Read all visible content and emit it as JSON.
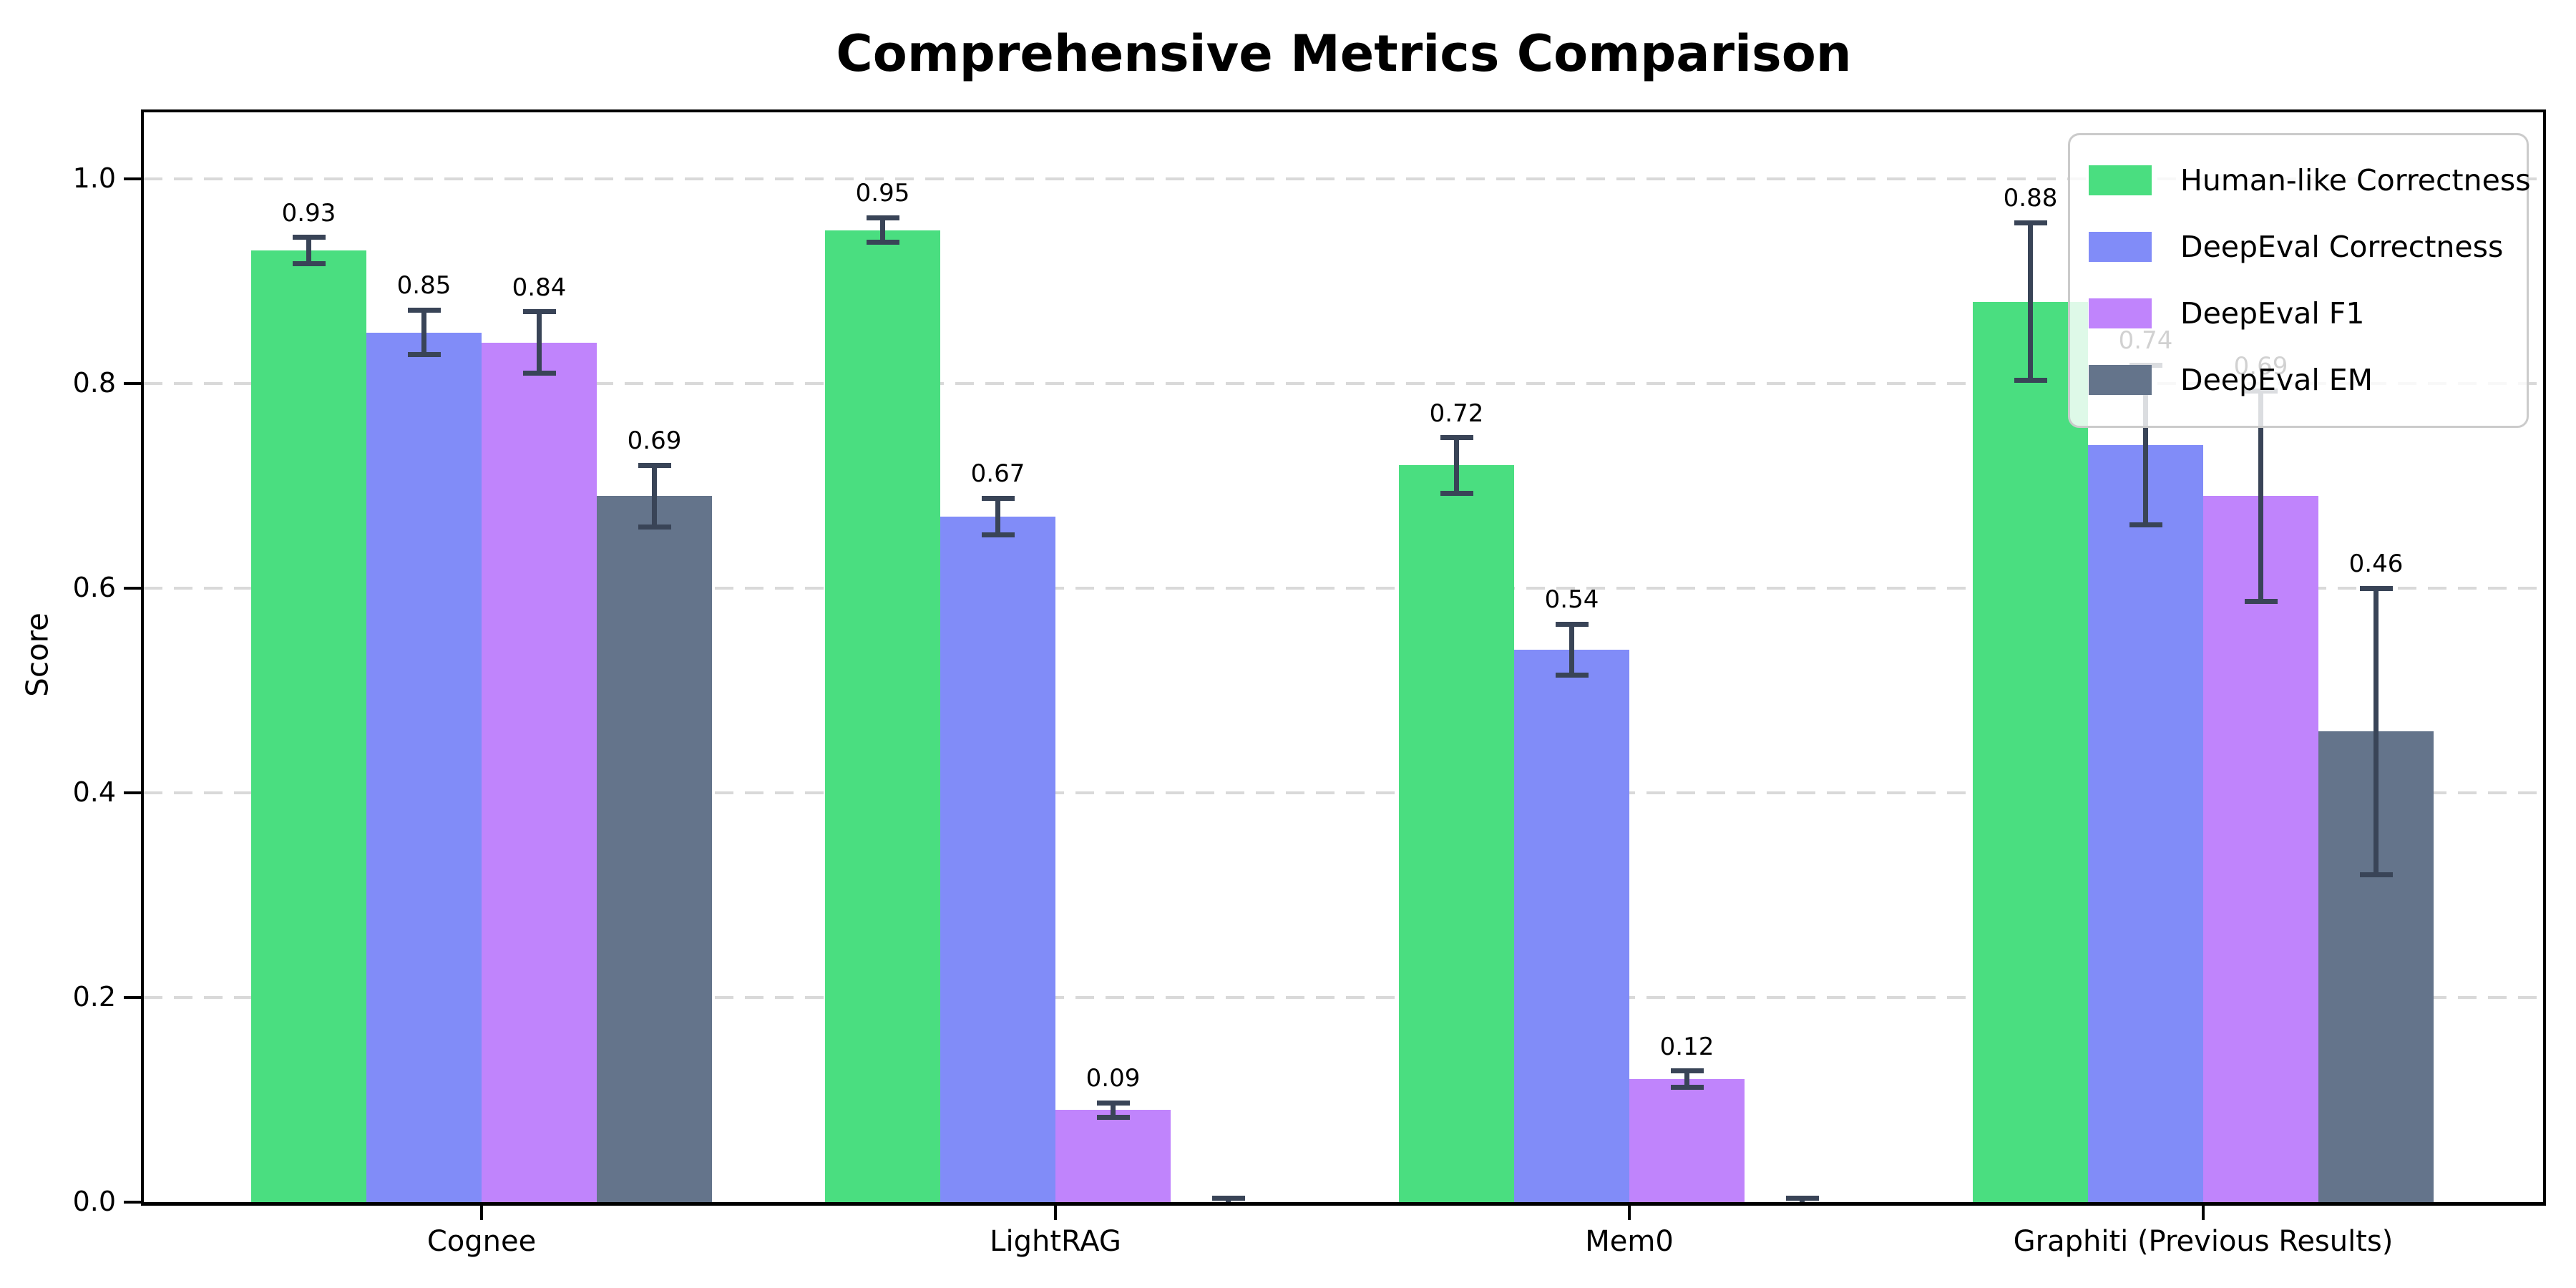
{
  "title": "Comprehensive Metrics Comparison",
  "chart_data": {
    "type": "bar",
    "title": "Comprehensive Metrics Comparison",
    "xlabel": "",
    "ylabel": "Score",
    "ylim": [
      0.0,
      1.07
    ],
    "yticks": [
      "0.0",
      "0.2",
      "0.4",
      "0.6",
      "0.8",
      "1.0"
    ],
    "ytick_values": [
      0.0,
      0.2,
      0.4,
      0.6,
      0.8,
      1.0
    ],
    "grid": "horizontal dashed",
    "legend_position": "upper right",
    "categories": [
      "Cognee",
      "LightRAG",
      "Mem0",
      "Graphiti (Previous Results)"
    ],
    "series": [
      {
        "name": "Human-like Correctness",
        "color": "#4ade80",
        "values": [
          0.93,
          0.95,
          0.72,
          0.88
        ],
        "errors": [
          0.013,
          0.012,
          0.027,
          0.077
        ],
        "labels": [
          "0.93",
          "0.95",
          "0.72",
          "0.88"
        ]
      },
      {
        "name": "DeepEval Correctness",
        "color": "#818cf8",
        "values": [
          0.85,
          0.67,
          0.54,
          0.74
        ],
        "errors": [
          0.022,
          0.018,
          0.025,
          0.078
        ],
        "labels": [
          "0.85",
          "0.67",
          "0.54",
          "0.74"
        ]
      },
      {
        "name": "DeepEval F1",
        "color": "#c084fc",
        "values": [
          0.84,
          0.09,
          0.12,
          0.69
        ],
        "errors": [
          0.03,
          0.007,
          0.008,
          0.103
        ],
        "labels": [
          "0.84",
          "0.09",
          "0.12",
          "0.69"
        ]
      },
      {
        "name": "DeepEval EM",
        "color": "#64748b",
        "values": [
          0.69,
          0.0,
          0.0,
          0.46
        ],
        "errors": [
          0.03,
          0.004,
          0.004,
          0.14
        ],
        "labels": [
          "0.69",
          "",
          "",
          "0.46"
        ]
      }
    ],
    "colors": {
      "error_bar": "#394457",
      "grid": "#d9d9d9",
      "axis": "#000000",
      "text": "#000000"
    }
  }
}
